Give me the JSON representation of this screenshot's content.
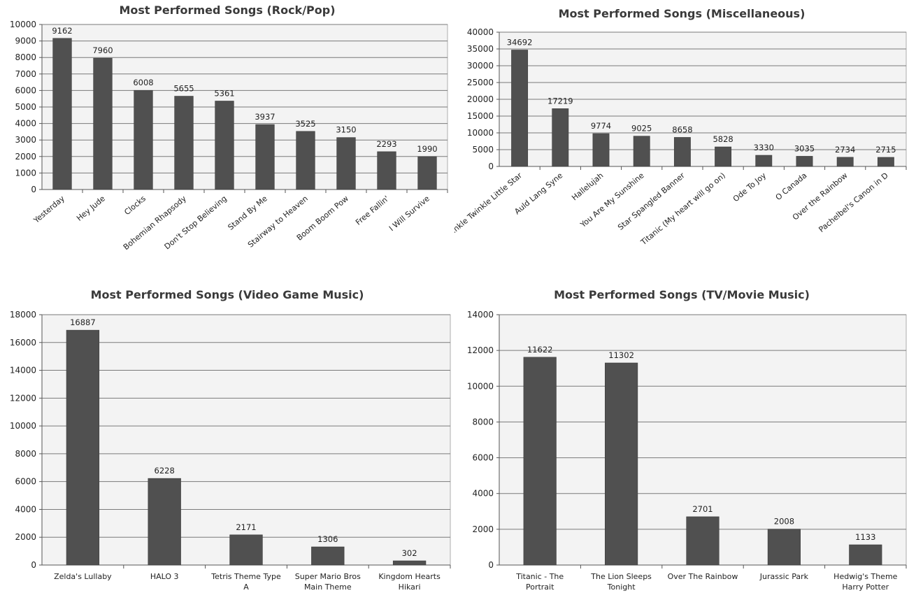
{
  "chart_data": [
    {
      "type": "bar",
      "title": "Most Performed Songs (Rock/Pop)",
      "xlabel": "",
      "ylabel": "",
      "ylim": [
        0,
        10000
      ],
      "ystep": 1000,
      "grid": true,
      "legend": "none",
      "rotate_labels": true,
      "categories": [
        "Yesterday",
        "Hey Jude",
        "Clocks",
        "Bohemian Rhapsody",
        "Don't Stop Believing",
        "Stand By Me",
        "Stairway to Heaven",
        "Boom Boom Pow",
        "Free Fallin'",
        "I Will Survive"
      ],
      "values": [
        9162,
        7960,
        6008,
        5655,
        5361,
        3937,
        3525,
        3150,
        2293,
        1990
      ],
      "bar_color": "#505050"
    },
    {
      "type": "bar",
      "title": "Most Performed Songs (Miscellaneous)",
      "xlabel": "",
      "ylabel": "",
      "ylim": [
        0,
        40000
      ],
      "ystep": 5000,
      "grid": true,
      "legend": "none",
      "rotate_labels": true,
      "categories": [
        "Twinkle Twinkle Little Star",
        "Auld Lang Syne",
        "Hallelujah",
        "You Are My Sunshine",
        "Star Spangled Banner",
        "Titanic (My heart will go on)",
        "Ode To Joy",
        "O Canada",
        "Over the Rainbow",
        "Pachelbel's Canon in D"
      ],
      "values": [
        34692,
        17219,
        9774,
        9025,
        8658,
        5828,
        3330,
        3035,
        2734,
        2715
      ],
      "bar_color": "#505050"
    },
    {
      "type": "bar",
      "title": "Most Performed Songs (Video Game Music)",
      "xlabel": "",
      "ylabel": "",
      "ylim": [
        0,
        18000
      ],
      "ystep": 2000,
      "grid": true,
      "legend": "none",
      "rotate_labels": false,
      "categories": [
        [
          "Zelda's Lullaby"
        ],
        [
          "HALO 3"
        ],
        [
          "Tetris Theme Type",
          "A"
        ],
        [
          "Super Mario Bros",
          "Main Theme"
        ],
        [
          "Kingdom Hearts",
          "Hikari"
        ]
      ],
      "values": [
        16887,
        6228,
        2171,
        1306,
        302
      ],
      "bar_color": "#505050"
    },
    {
      "type": "bar",
      "title": "Most Performed Songs (TV/Movie Music)",
      "xlabel": "",
      "ylabel": "",
      "ylim": [
        0,
        14000
      ],
      "ystep": 2000,
      "grid": true,
      "legend": "none",
      "rotate_labels": false,
      "categories": [
        [
          "Titanic - The",
          "Portrait"
        ],
        [
          "The Lion Sleeps",
          "Tonight"
        ],
        [
          "Over The Rainbow"
        ],
        [
          "Jurassic Park"
        ],
        [
          "Hedwig's Theme",
          "Harry Potter"
        ]
      ],
      "values": [
        11622,
        11302,
        2701,
        2008,
        1133
      ],
      "bar_color": "#505050"
    }
  ]
}
